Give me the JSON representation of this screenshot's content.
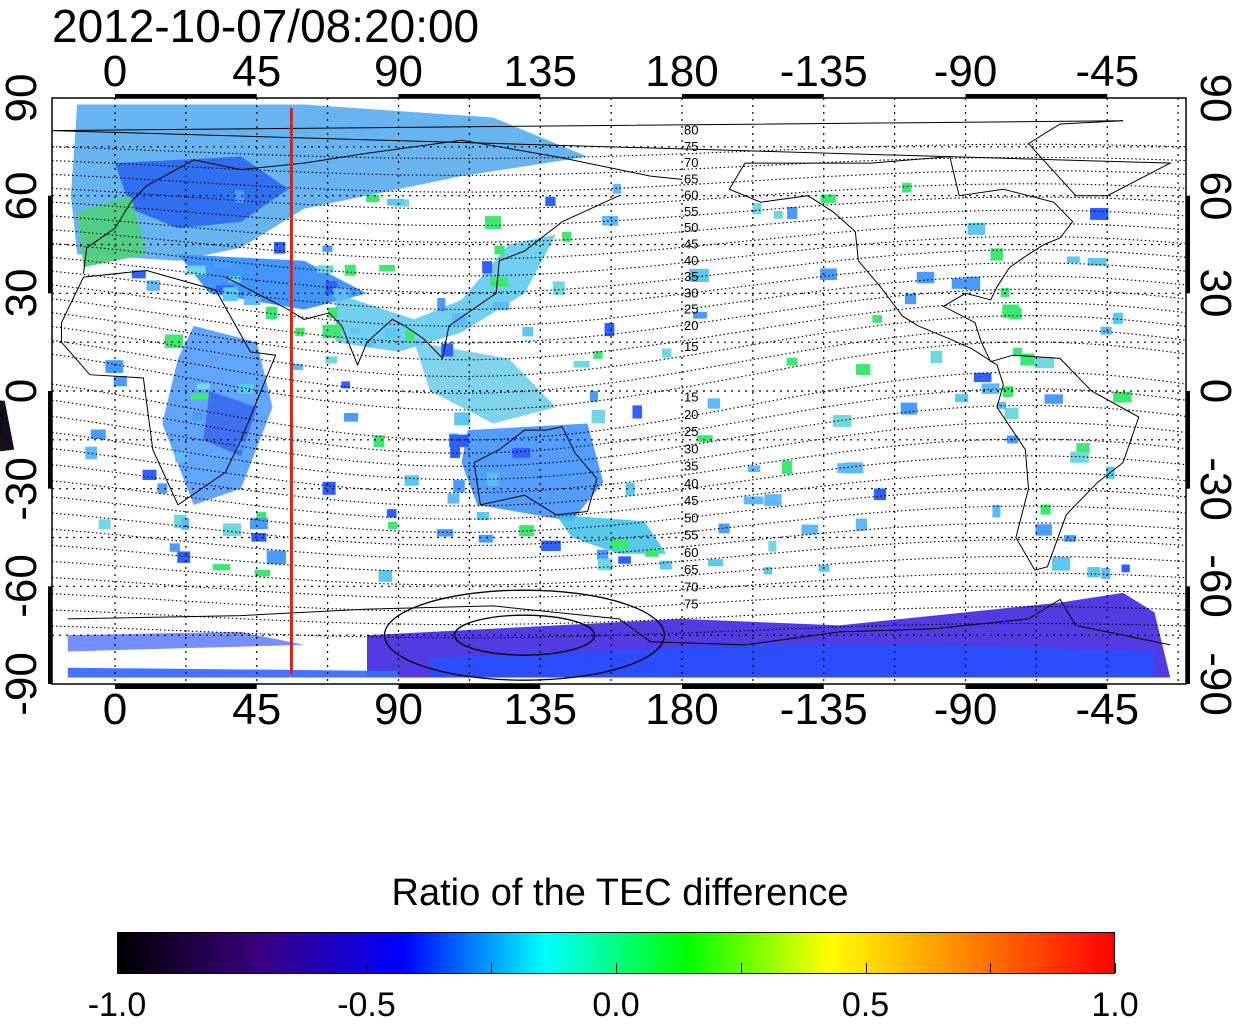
{
  "timestamp": "2012-10-07/08:20:00",
  "colorbar": {
    "title": "Ratio of the TEC difference",
    "ticks": [
      "-1.0",
      "-0.5",
      "0.0",
      "0.5",
      "1.0"
    ],
    "min": -1.0,
    "max": 1.0,
    "colors": [
      "#000000",
      "#3a0080",
      "#0000ff",
      "#00ffff",
      "#00ff00",
      "#ffff00",
      "#ff8000",
      "#ff0000"
    ]
  },
  "longitude_ticks": [
    "0",
    "45",
    "90",
    "135",
    "180",
    "-135",
    "-90",
    "-45"
  ],
  "latitude_ticks": [
    "90",
    "60",
    "30",
    "0",
    "-30",
    "-60",
    "-90"
  ],
  "map": {
    "projection": "equirectangular",
    "lon_range": [
      -20,
      340
    ],
    "lat_range": [
      -90,
      90
    ],
    "grid": true,
    "meridian_marker": {
      "longitude": 56,
      "color": "#e02010"
    },
    "contour_labels_north": [
      "80",
      "75",
      "70",
      "65",
      "60",
      "55",
      "50",
      "45",
      "40",
      "35",
      "30",
      "25",
      "20",
      "15"
    ],
    "contour_labels_south": [
      "15",
      "20",
      "25",
      "30",
      "35",
      "40",
      "45",
      "50",
      "55",
      "60",
      "65",
      "70",
      "75"
    ]
  }
}
